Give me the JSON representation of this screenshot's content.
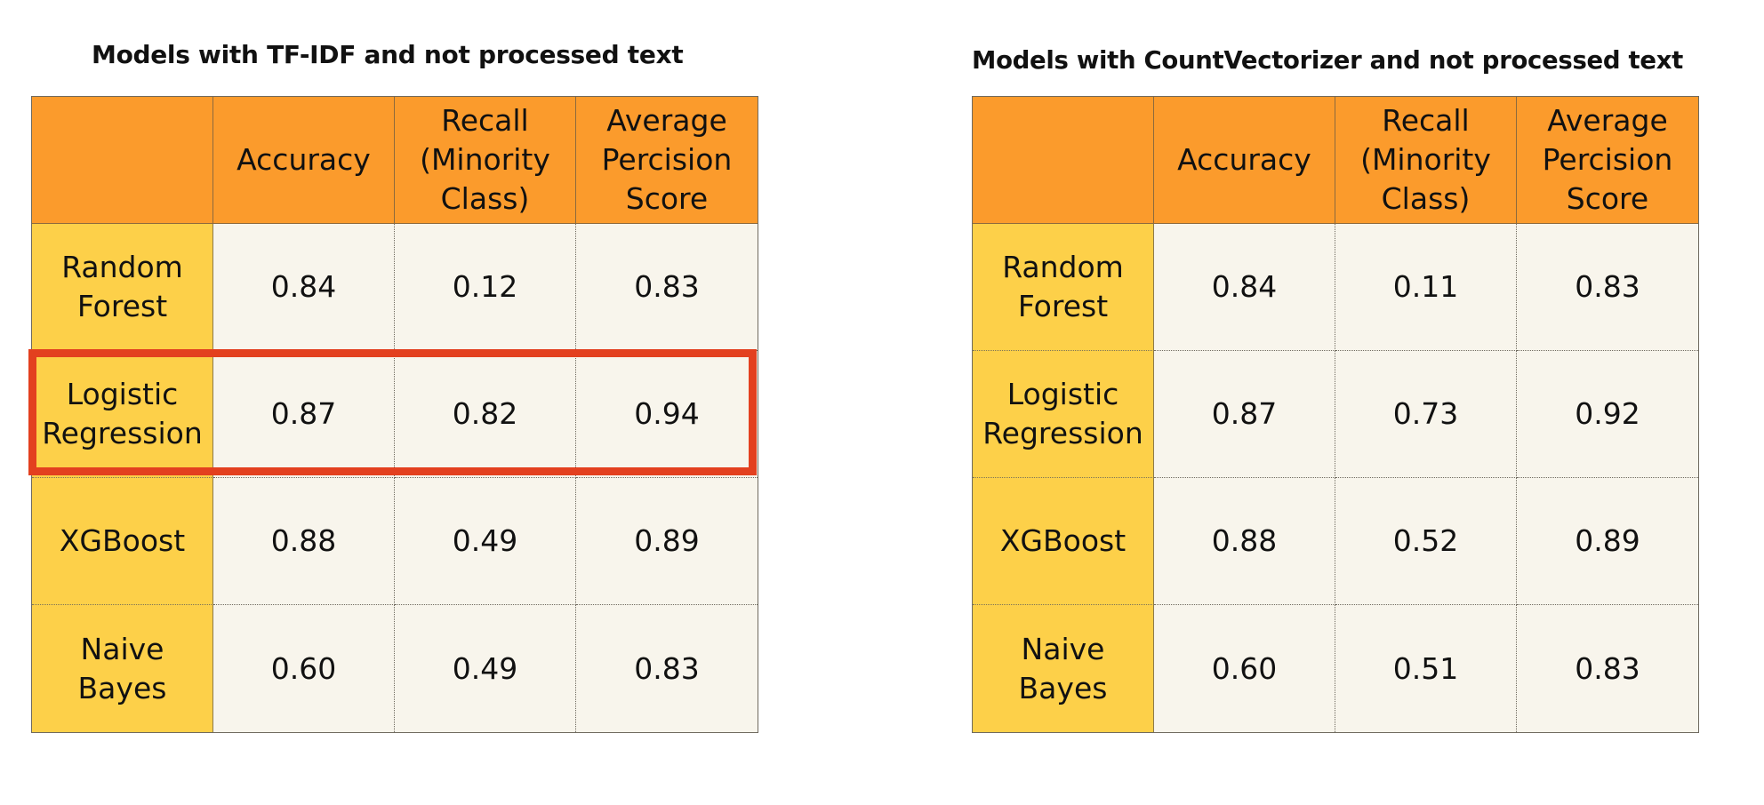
{
  "chart_data": [
    {
      "type": "table",
      "title": "Models with TF-IDF  and not processed text",
      "columns": [
        "",
        "Accuracy",
        "Recall\n(Minority\nClass)",
        "Average\nPercision\nScore"
      ],
      "rows": [
        {
          "model": "Random\nForest",
          "values": [
            "0.84",
            "0.12",
            "0.83"
          ]
        },
        {
          "model": "Logistic\nRegression",
          "values": [
            "0.87",
            "0.82",
            "0.94"
          ]
        },
        {
          "model": "XGBoost",
          "values": [
            "0.88",
            "0.49",
            "0.89"
          ]
        },
        {
          "model": "Naive\nBayes",
          "values": [
            "0.60",
            "0.49",
            "0.83"
          ]
        }
      ],
      "highlighted_row": "Logistic\nRegression",
      "highlight_color": "#e3401f"
    },
    {
      "type": "table",
      "title": "Models with CountVectorizer and not processed text",
      "columns": [
        "",
        "Accuracy",
        "Recall\n(Minority\nClass)",
        "Average\nPercision\nScore"
      ],
      "rows": [
        {
          "model": "Random\nForest",
          "values": [
            "0.84",
            "0.11",
            "0.83"
          ]
        },
        {
          "model": "Logistic\nRegression",
          "values": [
            "0.87",
            "0.73",
            "0.92"
          ]
        },
        {
          "model": "XGBoost",
          "values": [
            "0.88",
            "0.52",
            "0.89"
          ]
        },
        {
          "model": "Naive\nBayes",
          "values": [
            "0.60",
            "0.51",
            "0.83"
          ]
        }
      ]
    }
  ],
  "colors": {
    "header_bg": "#fb9b2c",
    "row_header_bg": "#fdd049",
    "cell_bg": "#f8f5ec",
    "highlight": "#e3401f"
  }
}
